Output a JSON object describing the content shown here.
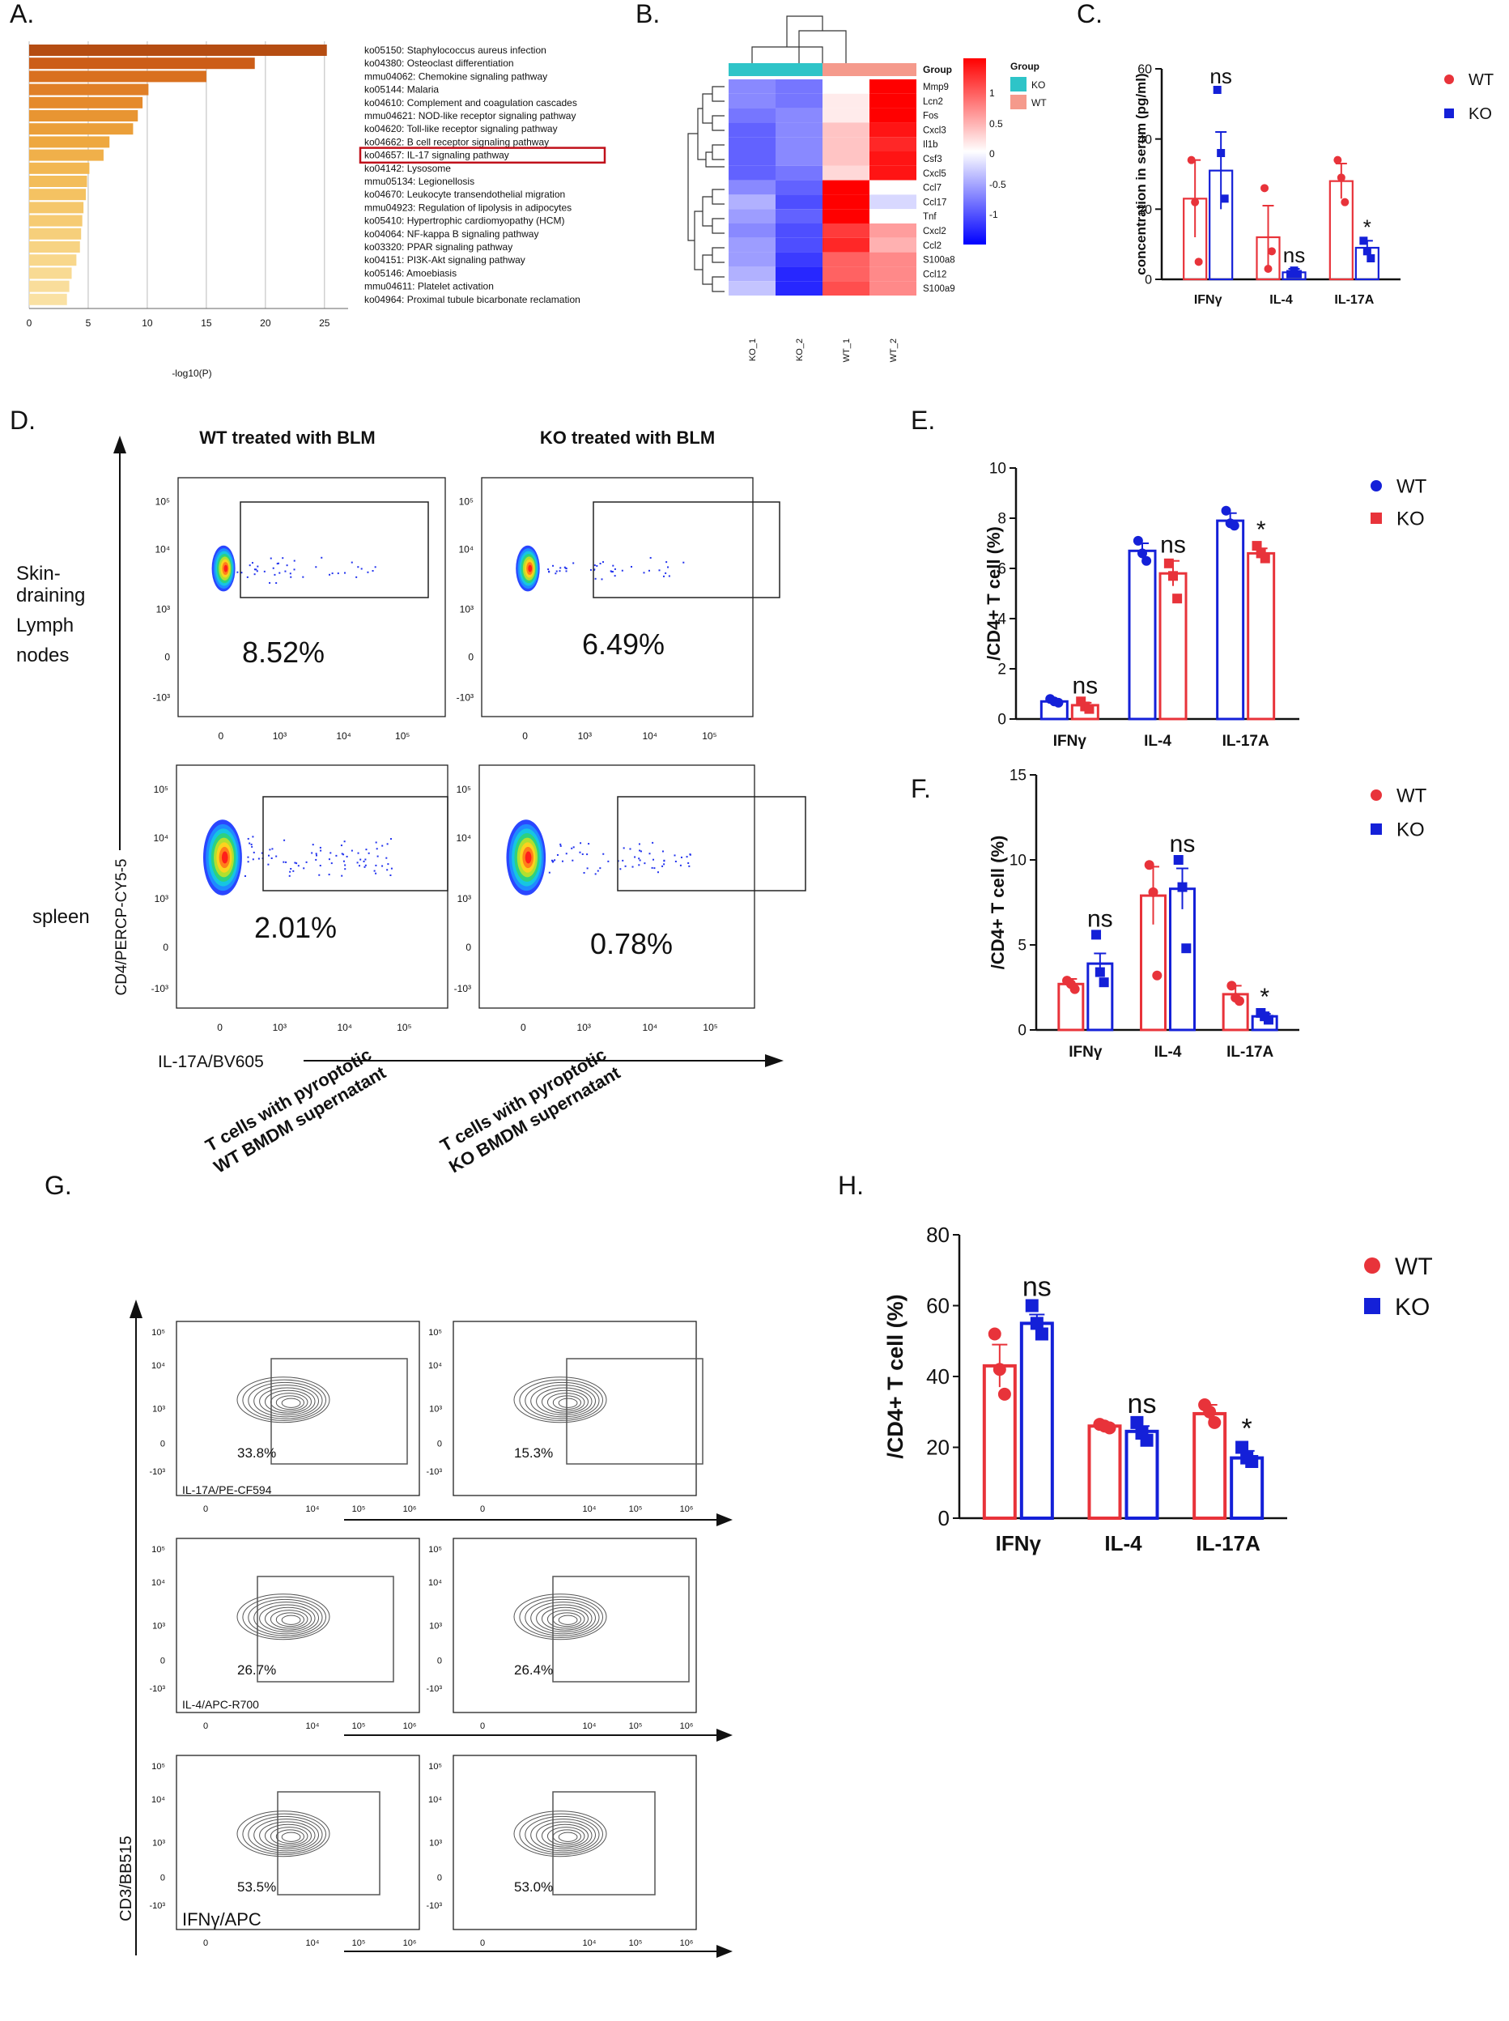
{
  "panel_labels": [
    "A.",
    "B.",
    "C.",
    "D.",
    "E.",
    "F.",
    "G.",
    "H."
  ],
  "chart_data": [
    {
      "id": "A",
      "type": "bar",
      "orientation": "horizontal",
      "xlabel": "-log10(P)",
      "xlim": [
        0,
        27
      ],
      "xticks": [
        0,
        5,
        10,
        15,
        20,
        25
      ],
      "highlight_index": 8,
      "categories": [
        "ko05150: Staphylococcus aureus infection",
        "ko04380: Osteoclast differentiation",
        "mmu04062: Chemokine signaling pathway",
        "ko05144: Malaria",
        "ko04610: Complement and coagulation cascades",
        "mmu04621: NOD-like receptor signaling pathway",
        "ko04620: Toll-like receptor signaling pathway",
        "ko04662: B cell receptor signaling pathway",
        "ko04657: IL-17 signaling pathway",
        "ko04142: Lysosome",
        "mmu05134: Legionellosis",
        "ko04670: Leukocyte transendothelial migration",
        "mmu04923: Regulation of lipolysis in adipocytes",
        "ko05410: Hypertrophic cardiomyopathy (HCM)",
        "ko04064: NF-kappa B signaling pathway",
        "ko03320: PPAR signaling pathway",
        "ko04151: PI3K-Akt signaling pathway",
        "ko05146: Amoebiasis",
        "mmu04611: Platelet activation",
        "ko04964: Proximal tubule bicarbonate reclamation"
      ],
      "values": [
        25.2,
        19.1,
        15.0,
        10.1,
        9.6,
        9.2,
        8.8,
        6.8,
        6.3,
        5.1,
        4.9,
        4.8,
        4.6,
        4.5,
        4.4,
        4.3,
        4.0,
        3.6,
        3.4,
        3.2
      ],
      "colors": [
        "#b54d12",
        "#cc5d18",
        "#d9701f",
        "#e07f27",
        "#e58a2c",
        "#e89532",
        "#eb9f39",
        "#eea840",
        "#f0b04a",
        "#f2b752",
        "#f3bd5a",
        "#f4c262",
        "#f5c76b",
        "#f6cb73",
        "#f6cf7b",
        "#f7d383",
        "#f8d78b",
        "#f8da93",
        "#f9dd9b",
        "#fae1a3"
      ]
    },
    {
      "id": "B",
      "type": "heatmap",
      "rows": [
        "Mmp9",
        "Lcn2",
        "Fos",
        "Cxcl3",
        "Il1b",
        "Csf3",
        "Cxcl5",
        "Ccl7",
        "Ccl17",
        "Tnf",
        "Cxcl2",
        "Ccl2",
        "S100a8",
        "Ccl12",
        "S100a9"
      ],
      "columns": [
        "KO_1",
        "KO_2",
        "WT_1",
        "WT_2"
      ],
      "values": [
        [
          -0.6,
          -0.7,
          0.0,
          1.3
        ],
        [
          -0.6,
          -0.7,
          0.1,
          1.3
        ],
        [
          -0.7,
          -0.6,
          0.1,
          1.3
        ],
        [
          -0.8,
          -0.6,
          0.3,
          1.2
        ],
        [
          -0.8,
          -0.6,
          0.3,
          1.1
        ],
        [
          -0.8,
          -0.6,
          0.3,
          1.2
        ],
        [
          -0.8,
          -0.7,
          0.2,
          1.2
        ],
        [
          -0.6,
          -0.8,
          1.4,
          0.0
        ],
        [
          -0.4,
          -0.9,
          1.4,
          -0.2
        ],
        [
          -0.5,
          -0.8,
          1.3,
          0.0
        ],
        [
          -0.6,
          -0.9,
          1.0,
          0.5
        ],
        [
          -0.5,
          -0.9,
          1.1,
          0.4
        ],
        [
          -0.5,
          -1.0,
          0.8,
          0.6
        ],
        [
          -0.4,
          -1.1,
          0.8,
          0.6
        ],
        [
          -0.3,
          -1.1,
          0.9,
          0.6
        ]
      ],
      "group_label": "Group",
      "groups": [
        {
          "name": "KO",
          "color": "#2ec4c8"
        },
        {
          "name": "WT",
          "color": "#f59a8c"
        }
      ],
      "colorbar_ticks": [
        "1",
        "0.5",
        "0",
        "-0.5",
        "-1"
      ]
    },
    {
      "id": "C",
      "type": "bar",
      "ylabel": "concentration in serum (pg/ml)",
      "ylim": [
        0,
        60
      ],
      "yticks": [
        0,
        20,
        40,
        60
      ],
      "categories": [
        "IFNγ",
        "IL-4",
        "IL-17A"
      ],
      "series": [
        {
          "name": "WT",
          "color": "#e8333a",
          "marker": "circle",
          "values": [
            23,
            12,
            28
          ],
          "sem": [
            11,
            9,
            5
          ],
          "points": [
            [
              34,
              22,
              5
            ],
            [
              26,
              3,
              8
            ],
            [
              34,
              29,
              22
            ]
          ]
        },
        {
          "name": "KO",
          "color": "#1420d8",
          "marker": "square",
          "values": [
            31,
            2,
            9
          ],
          "sem": [
            11,
            1,
            2
          ],
          "points": [
            [
              54,
              36,
              23
            ],
            [
              1.5,
              2.5,
              1.5
            ],
            [
              11,
              8,
              6
            ]
          ]
        }
      ],
      "significance": [
        "ns",
        "ns",
        "*"
      ]
    },
    {
      "id": "E",
      "type": "bar",
      "ylabel": "/CD4+ T cell (%)",
      "ylim": [
        0,
        10
      ],
      "yticks": [
        0,
        2,
        4,
        6,
        8,
        10
      ],
      "categories": [
        "IFNγ",
        "IL-4",
        "IL-17A"
      ],
      "series": [
        {
          "name": "WT",
          "color": "#1420d8",
          "marker": "circle",
          "values": [
            0.7,
            6.7,
            7.9
          ],
          "sem": [
            0.05,
            0.3,
            0.3
          ],
          "points": [
            [
              0.8,
              0.7,
              0.65
            ],
            [
              7.1,
              6.6,
              6.3
            ],
            [
              8.3,
              7.8,
              7.7
            ]
          ]
        },
        {
          "name": "KO",
          "color": "#e8333a",
          "marker": "square",
          "values": [
            0.55,
            5.8,
            6.6
          ],
          "sem": [
            0.1,
            0.5,
            0.2
          ],
          "points": [
            [
              0.7,
              0.5,
              0.4
            ],
            [
              6.2,
              5.7,
              4.8
            ],
            [
              6.9,
              6.6,
              6.4
            ]
          ]
        }
      ],
      "significance": [
        "ns",
        "ns",
        "*"
      ]
    },
    {
      "id": "F",
      "type": "bar",
      "ylabel": "/CD4+ T cell (%)",
      "ylim": [
        0,
        15
      ],
      "yticks": [
        0,
        5,
        10,
        15
      ],
      "categories": [
        "IFNγ",
        "IL-4",
        "IL-17A"
      ],
      "series": [
        {
          "name": "WT",
          "color": "#e8333a",
          "marker": "circle",
          "values": [
            2.7,
            7.9,
            2.1
          ],
          "sem": [
            0.3,
            1.7,
            0.5
          ],
          "points": [
            [
              2.9,
              2.7,
              2.4
            ],
            [
              9.7,
              8.1,
              3.2
            ],
            [
              2.6,
              1.9,
              1.7
            ]
          ]
        },
        {
          "name": "KO",
          "color": "#1420d8",
          "marker": "square",
          "values": [
            3.9,
            8.3,
            0.8
          ],
          "sem": [
            0.6,
            1.2,
            0.15
          ],
          "points": [
            [
              5.6,
              3.4,
              2.8
            ],
            [
              10.0,
              8.4,
              4.8
            ],
            [
              1.0,
              0.8,
              0.6
            ]
          ]
        }
      ],
      "significance": [
        "ns",
        "ns",
        "*"
      ]
    },
    {
      "id": "H",
      "type": "bar",
      "ylabel": "/CD4+ T cell (%)",
      "ylim": [
        0,
        80
      ],
      "yticks": [
        0,
        20,
        40,
        60,
        80
      ],
      "categories": [
        "IFNγ",
        "IL-4",
        "IL-17A"
      ],
      "series": [
        {
          "name": "WT",
          "color": "#e8333a",
          "marker": "circle",
          "values": [
            43,
            26,
            29.5
          ],
          "sem": [
            6,
            0.5,
            2.5
          ],
          "points": [
            [
              52,
              42,
              35
            ],
            [
              26.5,
              26,
              25.5
            ],
            [
              32,
              30,
              27
            ]
          ]
        },
        {
          "name": "KO",
          "color": "#1420d8",
          "marker": "square",
          "values": [
            55,
            24.5,
            17
          ],
          "sem": [
            2.5,
            1.5,
            2
          ],
          "points": [
            [
              60,
              55,
              52
            ],
            [
              27,
              24,
              22
            ],
            [
              20,
              17,
              16
            ]
          ]
        }
      ],
      "significance": [
        "ns",
        "ns",
        "*"
      ]
    }
  ],
  "panel_d": {
    "col_titles": [
      "WT treated with  BLM",
      "KO treated with BLM"
    ],
    "row_labels": [
      "Skin-draining Lymph nodes",
      "spleen"
    ],
    "row_label_lines": [
      "Skin-",
      "draining",
      "Lymph",
      "nodes"
    ],
    "percentages": [
      "8.52%",
      "6.49%",
      "2.01%",
      "0.78%"
    ],
    "y_axis_label": "CD4/PERCP-CY5-5",
    "x_axis_label": "IL-17A/BV605",
    "x_ticks": [
      "0",
      "10³",
      "10⁴",
      "10⁵"
    ],
    "y_ticks": [
      "10⁵",
      "10⁴",
      "10³",
      "0",
      "-10³"
    ]
  },
  "panel_g": {
    "col_titles": [
      [
        "T cells with pyroptotic",
        "WT BMDM supernatant"
      ],
      [
        "T cells with pyroptotic",
        "KO BMDM supernatant"
      ]
    ],
    "percentages": [
      "33.8%",
      "15.3%",
      "26.7%",
      "26.4%",
      "53.5%",
      "53.0%"
    ],
    "x_axis_labels": [
      "IL-17A/PE-CF594",
      "IL-4/APC-R700",
      "IFNγ/APC"
    ],
    "y_axis_label": "CD3/BB515",
    "x_ticks": [
      "0",
      "10⁴",
      "10⁵",
      "10⁶"
    ],
    "y_ticks": [
      "10⁵",
      "10⁴",
      "10³",
      "0",
      "-10³"
    ]
  }
}
